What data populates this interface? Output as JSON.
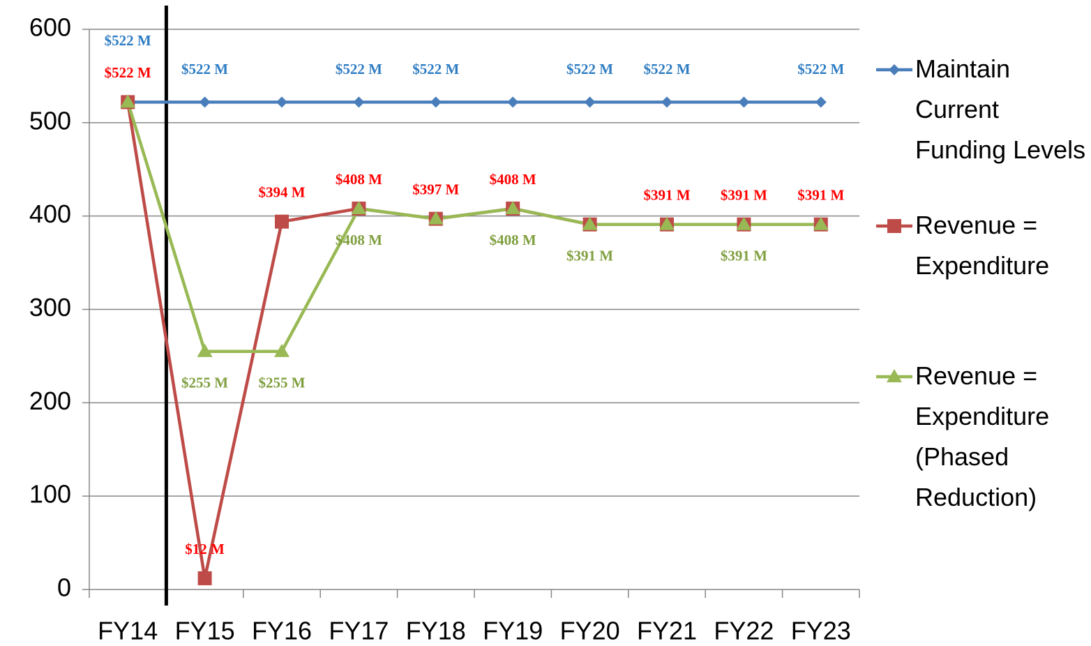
{
  "chart_data": {
    "type": "line",
    "categories": [
      "FY14",
      "FY15",
      "FY16",
      "FY17",
      "FY18",
      "FY19",
      "FY20",
      "FY21",
      "FY22",
      "FY23"
    ],
    "series": [
      {
        "name": "Maintain Current Funding Levels",
        "color": "#4a7ebb",
        "marker": "diamond",
        "values": [
          522,
          522,
          522,
          522,
          522,
          522,
          522,
          522,
          522,
          522
        ],
        "value_labels": [
          "$522 M",
          "$522 M",
          null,
          "$522 M",
          "$522 M",
          null,
          "$522 M",
          "$522 M",
          null,
          "$522 M"
        ]
      },
      {
        "name": "Revenue = Expenditure",
        "color": "#be4b48",
        "marker": "square",
        "values": [
          522,
          12,
          394,
          408,
          397,
          408,
          391,
          391,
          391,
          391
        ],
        "value_labels": [
          "$522 M",
          "$12 M",
          "$394 M",
          "$408 M",
          "$397 M",
          "$408 M",
          null,
          "$391 M",
          "$391 M",
          "$391 M"
        ]
      },
      {
        "name": "Revenue = Expenditure (Phased Reduction)",
        "color": "#98b954",
        "marker": "triangle",
        "values": [
          522,
          255,
          255,
          408,
          397,
          408,
          391,
          391,
          391,
          391
        ],
        "value_labels": [
          null,
          "$255 M",
          "$255 M",
          "$408 M",
          null,
          "$408 M",
          "$391 M",
          null,
          "$391 M",
          null
        ]
      }
    ],
    "ylim": [
      0,
      600
    ],
    "yticks": [
      0,
      100,
      200,
      300,
      400,
      500,
      600
    ],
    "grid": true,
    "legend": "right"
  }
}
